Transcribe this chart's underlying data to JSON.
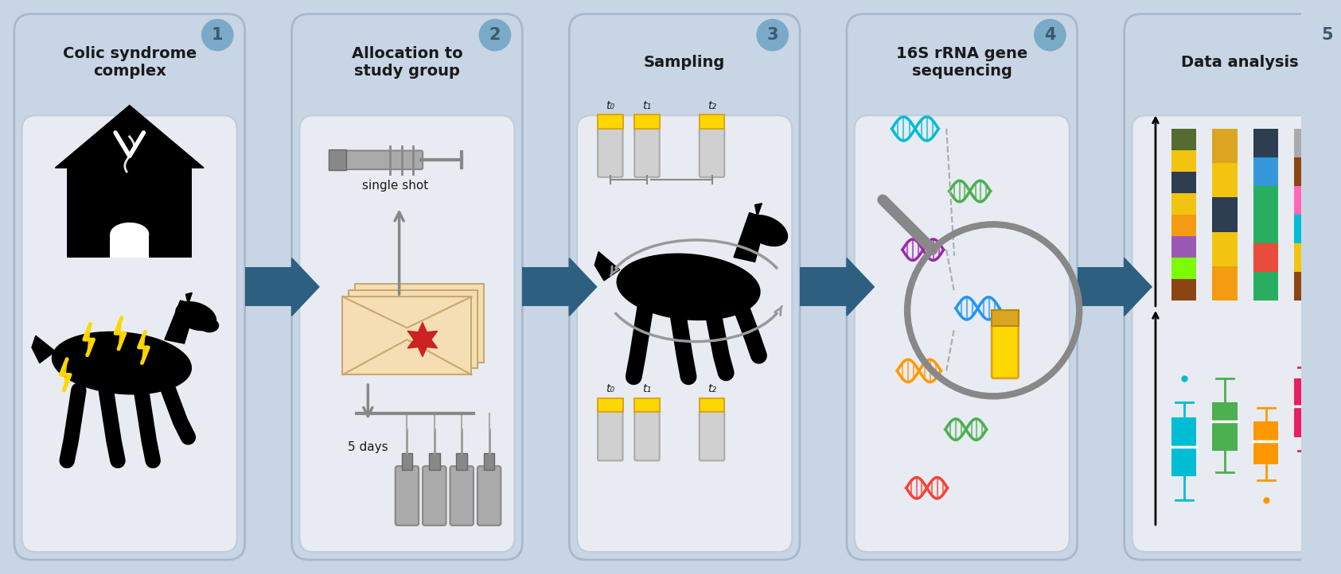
{
  "background_color": "#c8d5e5",
  "panel_outer_bg": "#c8d5e5",
  "panel_inner_bg": "#e8ecf2",
  "panel_border_color": "#b0bdd0",
  "arrow_color": "#2d5f80",
  "circle_color": "#7aaac8",
  "circle_text_color": "#3a5a70",
  "panel_titles": [
    "Colic syndrome\ncomplex",
    "Allocation to\nstudy group",
    "Sampling",
    "16S rRNA gene\nsequencing",
    "Data analysis"
  ],
  "panel_numbers": [
    "1",
    "2",
    "3",
    "4",
    "5"
  ],
  "text_color": "#1a1a1a",
  "bar_data": [
    [
      "#8B4513",
      "#7CFC00",
      "#9B59B6",
      "#F39C12",
      "#F1C40F",
      "#2C3E50",
      "#F1C40F",
      "#556B2F"
    ],
    [
      "#F39C12",
      "#F1C40F",
      "#2C3E50",
      "#F1C40F",
      "#DAA520"
    ],
    [
      "#27AE60",
      "#E74C3C",
      "#27AE60",
      "#27AE60",
      "#3498DB",
      "#2C3E50"
    ],
    [
      "#8B4513",
      "#F1C40F",
      "#00BCD4",
      "#FF69B4",
      "#8B4513",
      "#aaaaaa"
    ]
  ],
  "box_colors": [
    "#00BCD4",
    "#4CAF50",
    "#FF9800",
    "#E91E63"
  ],
  "dna_colors": [
    "#00BCD4",
    "#4CAF50",
    "#9C27B0",
    "#2196F3",
    "#FF9800",
    "#4CAF50",
    "#F44336"
  ]
}
